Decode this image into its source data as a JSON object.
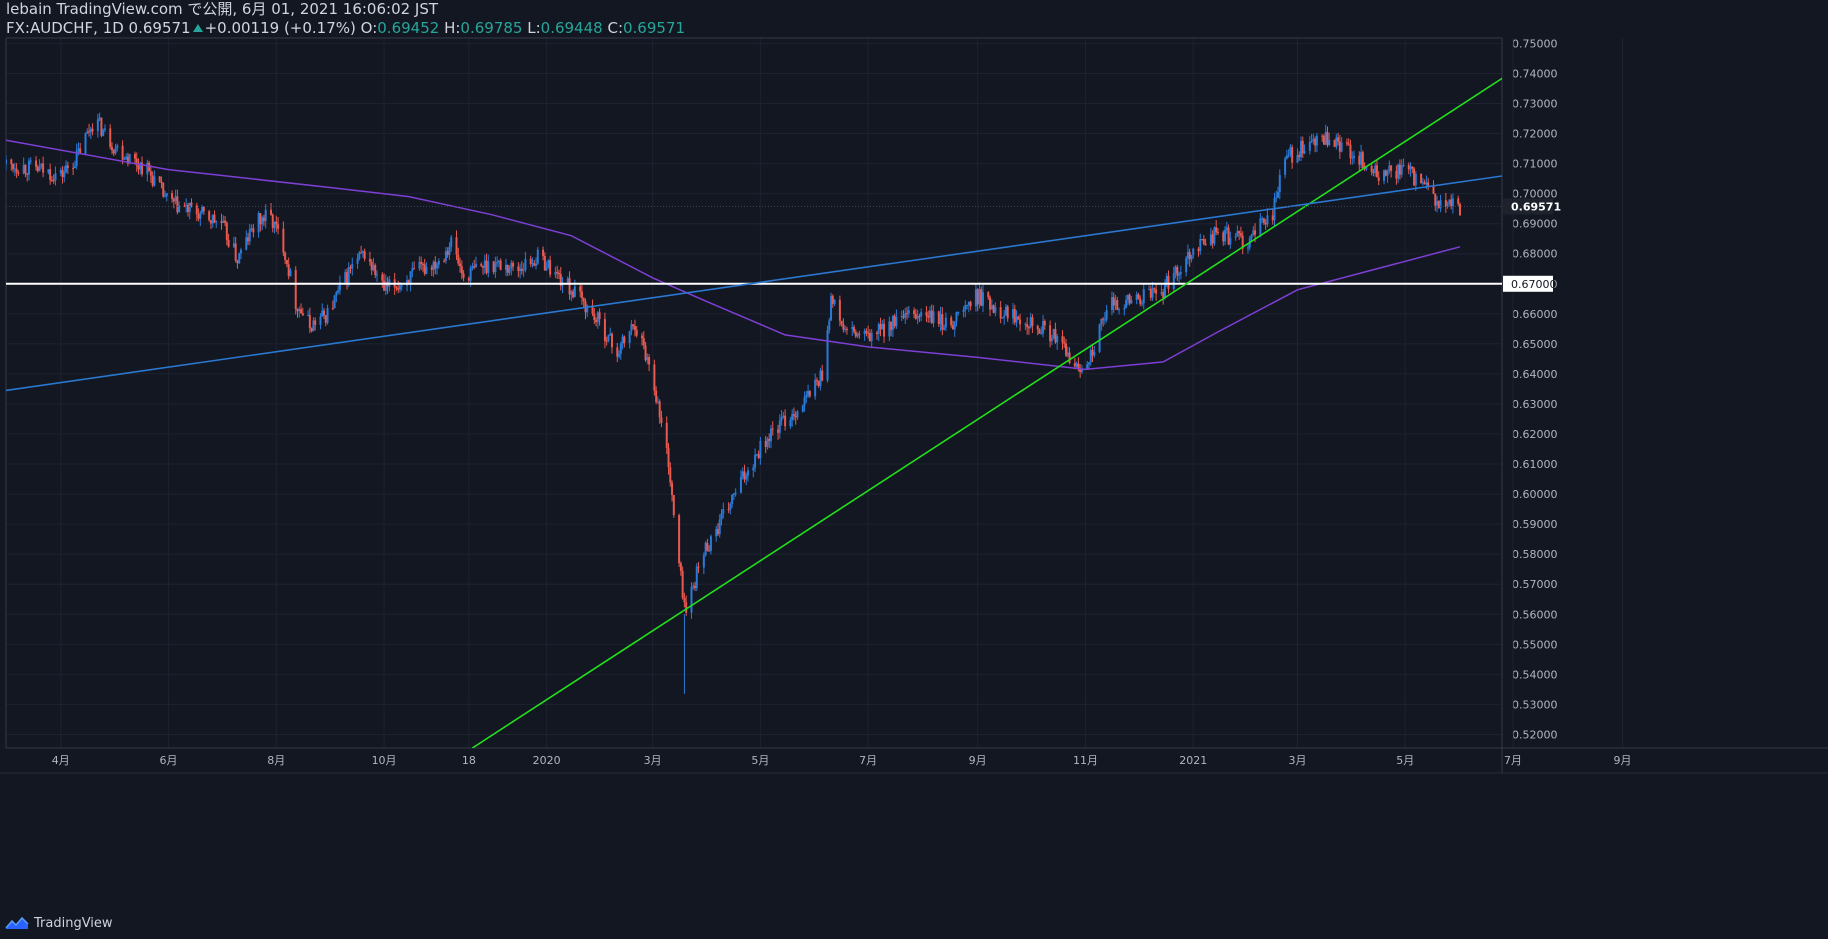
{
  "header": {
    "line1": "lebain TradingView.com で公開, 6月 01, 2021 16:06:02 JST",
    "symbol": "FX:AUDCHF, 1D",
    "last": "0.69571",
    "change": "+0.00119 (+0.17%)",
    "o_label": "O:",
    "o_value": "0.69452",
    "h_label": "H:",
    "h_value": "0.69785",
    "l_label": "L:",
    "l_value": "0.69448",
    "c_label": "C:",
    "c_value": "0.69571"
  },
  "footer": {
    "brand": "TradingView",
    "icon": "tradingview-logo-icon"
  },
  "colors": {
    "background": "#131722",
    "grid": "#1e2230",
    "axis_text": "#b2b5be",
    "up_candle": "#2a7ad8",
    "down_candle": "#e8594f",
    "ma_line": "#7e3fd4",
    "green_trend": "#22e01c",
    "blue_trend": "#2a78d0",
    "support_line": "#ffffff"
  },
  "chart_data": {
    "type": "candlestick",
    "symbol": "FX:AUDCHF",
    "interval": "1D",
    "ylim": [
      0.5155,
      0.7518
    ],
    "y_ticks": [
      "0.75000",
      "0.74000",
      "0.73000",
      "0.72000",
      "0.71000",
      "0.70000",
      "0.69000",
      "0.68000",
      "0.67000",
      "0.66000",
      "0.65000",
      "0.64000",
      "0.63000",
      "0.62000",
      "0.61000",
      "0.60000",
      "0.59000",
      "0.58000",
      "0.57000",
      "0.56000",
      "0.55000",
      "0.54000",
      "0.53000",
      "0.52000"
    ],
    "x_ticks": [
      "4月",
      "6月",
      "8月",
      "10月",
      "18",
      "2020",
      "3月",
      "5月",
      "7月",
      "9月",
      "11月",
      "2021",
      "3月",
      "5月",
      "7月",
      "9月"
    ],
    "x_tick_dates": [
      "2019-04-01",
      "2019-06-01",
      "2019-08-01",
      "2019-10-01",
      "2019-11-18",
      "2020-01-01",
      "2020-03-01",
      "2020-05-01",
      "2020-07-01",
      "2020-09-01",
      "2020-11-01",
      "2021-01-01",
      "2021-03-01",
      "2021-05-01",
      "2021-07-01",
      "2021-09-01"
    ],
    "last_price": "0.69571",
    "price_series": [
      {
        "date": "2019-03-01",
        "close": 0.71
      },
      {
        "date": "2019-03-20",
        "close": 0.708
      },
      {
        "date": "2019-04-01",
        "close": 0.706
      },
      {
        "date": "2019-04-10",
        "close": 0.712
      },
      {
        "date": "2019-04-20",
        "close": 0.725
      },
      {
        "date": "2019-05-01",
        "close": 0.716
      },
      {
        "date": "2019-05-10",
        "close": 0.712
      },
      {
        "date": "2019-05-20",
        "close": 0.708
      },
      {
        "date": "2019-06-01",
        "close": 0.697
      },
      {
        "date": "2019-06-15",
        "close": 0.694
      },
      {
        "date": "2019-07-01",
        "close": 0.69
      },
      {
        "date": "2019-07-10",
        "close": 0.678
      },
      {
        "date": "2019-07-20",
        "close": 0.69
      },
      {
        "date": "2019-07-28",
        "close": 0.693
      },
      {
        "date": "2019-08-05",
        "close": 0.683
      },
      {
        "date": "2019-08-12",
        "close": 0.664
      },
      {
        "date": "2019-08-20",
        "close": 0.656
      },
      {
        "date": "2019-08-30",
        "close": 0.66
      },
      {
        "date": "2019-09-12",
        "close": 0.675
      },
      {
        "date": "2019-09-20",
        "close": 0.68
      },
      {
        "date": "2019-10-01",
        "close": 0.668
      },
      {
        "date": "2019-10-10",
        "close": 0.67
      },
      {
        "date": "2019-10-20",
        "close": 0.674
      },
      {
        "date": "2019-11-01",
        "close": 0.678
      },
      {
        "date": "2019-11-08",
        "close": 0.684
      },
      {
        "date": "2019-11-15",
        "close": 0.672
      },
      {
        "date": "2019-11-22",
        "close": 0.675
      },
      {
        "date": "2019-12-01",
        "close": 0.677
      },
      {
        "date": "2019-12-15",
        "close": 0.675
      },
      {
        "date": "2019-12-28",
        "close": 0.679
      },
      {
        "date": "2020-01-10",
        "close": 0.671
      },
      {
        "date": "2020-01-20",
        "close": 0.665
      },
      {
        "date": "2020-02-01",
        "close": 0.656
      },
      {
        "date": "2020-02-10",
        "close": 0.647
      },
      {
        "date": "2020-02-20",
        "close": 0.657
      },
      {
        "date": "2020-03-01",
        "close": 0.64
      },
      {
        "date": "2020-03-05",
        "close": 0.626
      },
      {
        "date": "2020-03-10",
        "close": 0.611
      },
      {
        "date": "2020-03-14",
        "close": 0.586
      },
      {
        "date": "2020-03-17",
        "close": 0.572
      },
      {
        "date": "2020-03-20",
        "close": 0.56
      },
      {
        "date": "2020-03-24",
        "close": 0.57
      },
      {
        "date": "2020-03-31",
        "close": 0.582
      },
      {
        "date": "2020-04-08",
        "close": 0.59
      },
      {
        "date": "2020-04-20",
        "close": 0.604
      },
      {
        "date": "2020-05-01",
        "close": 0.616
      },
      {
        "date": "2020-05-12",
        "close": 0.623
      },
      {
        "date": "2020-05-25",
        "close": 0.63
      },
      {
        "date": "2020-06-05",
        "close": 0.64
      },
      {
        "date": "2020-06-10",
        "close": 0.665
      },
      {
        "date": "2020-06-18",
        "close": 0.654
      },
      {
        "date": "2020-07-01",
        "close": 0.652
      },
      {
        "date": "2020-07-15",
        "close": 0.657
      },
      {
        "date": "2020-08-01",
        "close": 0.66
      },
      {
        "date": "2020-08-15",
        "close": 0.656
      },
      {
        "date": "2020-09-01",
        "close": 0.666
      },
      {
        "date": "2020-09-15",
        "close": 0.661
      },
      {
        "date": "2020-10-01",
        "close": 0.658
      },
      {
        "date": "2020-10-15",
        "close": 0.652
      },
      {
        "date": "2020-10-28",
        "close": 0.641
      },
      {
        "date": "2020-11-05",
        "close": 0.648
      },
      {
        "date": "2020-11-15",
        "close": 0.663
      },
      {
        "date": "2020-12-01",
        "close": 0.665
      },
      {
        "date": "2020-12-15",
        "close": 0.668
      },
      {
        "date": "2021-01-01",
        "close": 0.682
      },
      {
        "date": "2021-01-15",
        "close": 0.687
      },
      {
        "date": "2021-02-01",
        "close": 0.684
      },
      {
        "date": "2021-02-15",
        "close": 0.694
      },
      {
        "date": "2021-02-22",
        "close": 0.712
      },
      {
        "date": "2021-03-01",
        "close": 0.714
      },
      {
        "date": "2021-03-15",
        "close": 0.718
      },
      {
        "date": "2021-04-01",
        "close": 0.714
      },
      {
        "date": "2021-04-15",
        "close": 0.706
      },
      {
        "date": "2021-05-01",
        "close": 0.708
      },
      {
        "date": "2021-05-12",
        "close": 0.702
      },
      {
        "date": "2021-05-20",
        "close": 0.696
      },
      {
        "date": "2021-06-01",
        "close": 0.6957
      }
    ],
    "moving_average": [
      {
        "date": "2019-03-01",
        "value": 0.7178
      },
      {
        "date": "2019-06-01",
        "value": 0.708
      },
      {
        "date": "2019-09-01",
        "value": 0.702
      },
      {
        "date": "2019-10-15",
        "value": 0.699
      },
      {
        "date": "2019-12-01",
        "value": 0.693
      },
      {
        "date": "2020-01-15",
        "value": 0.686
      },
      {
        "date": "2020-03-01",
        "value": 0.672
      },
      {
        "date": "2020-04-01",
        "value": 0.664
      },
      {
        "date": "2020-05-15",
        "value": 0.653
      },
      {
        "date": "2020-07-01",
        "value": 0.649
      },
      {
        "date": "2020-09-01",
        "value": 0.6455
      },
      {
        "date": "2020-11-01",
        "value": 0.6415
      },
      {
        "date": "2020-12-15",
        "value": 0.644
      },
      {
        "date": "2021-01-15",
        "value": 0.654
      },
      {
        "date": "2021-03-01",
        "value": 0.668
      },
      {
        "date": "2021-06-01",
        "value": 0.6823
      }
    ],
    "trendlines": [
      {
        "name": "green",
        "start": {
          "date": "2019-11-20",
          "price": 0.5155
        },
        "end": {
          "date": "2021-07-30",
          "price": 0.7518
        }
      },
      {
        "name": "blue",
        "start": {
          "date": "2019-03-01",
          "price": 0.6345
        },
        "end": {
          "date": "2021-09-15",
          "price": 0.7128
        }
      }
    ],
    "horizontal_lines": [
      {
        "price": 0.67,
        "label": "0.67000"
      }
    ],
    "grid": true,
    "price_axis": "right"
  }
}
